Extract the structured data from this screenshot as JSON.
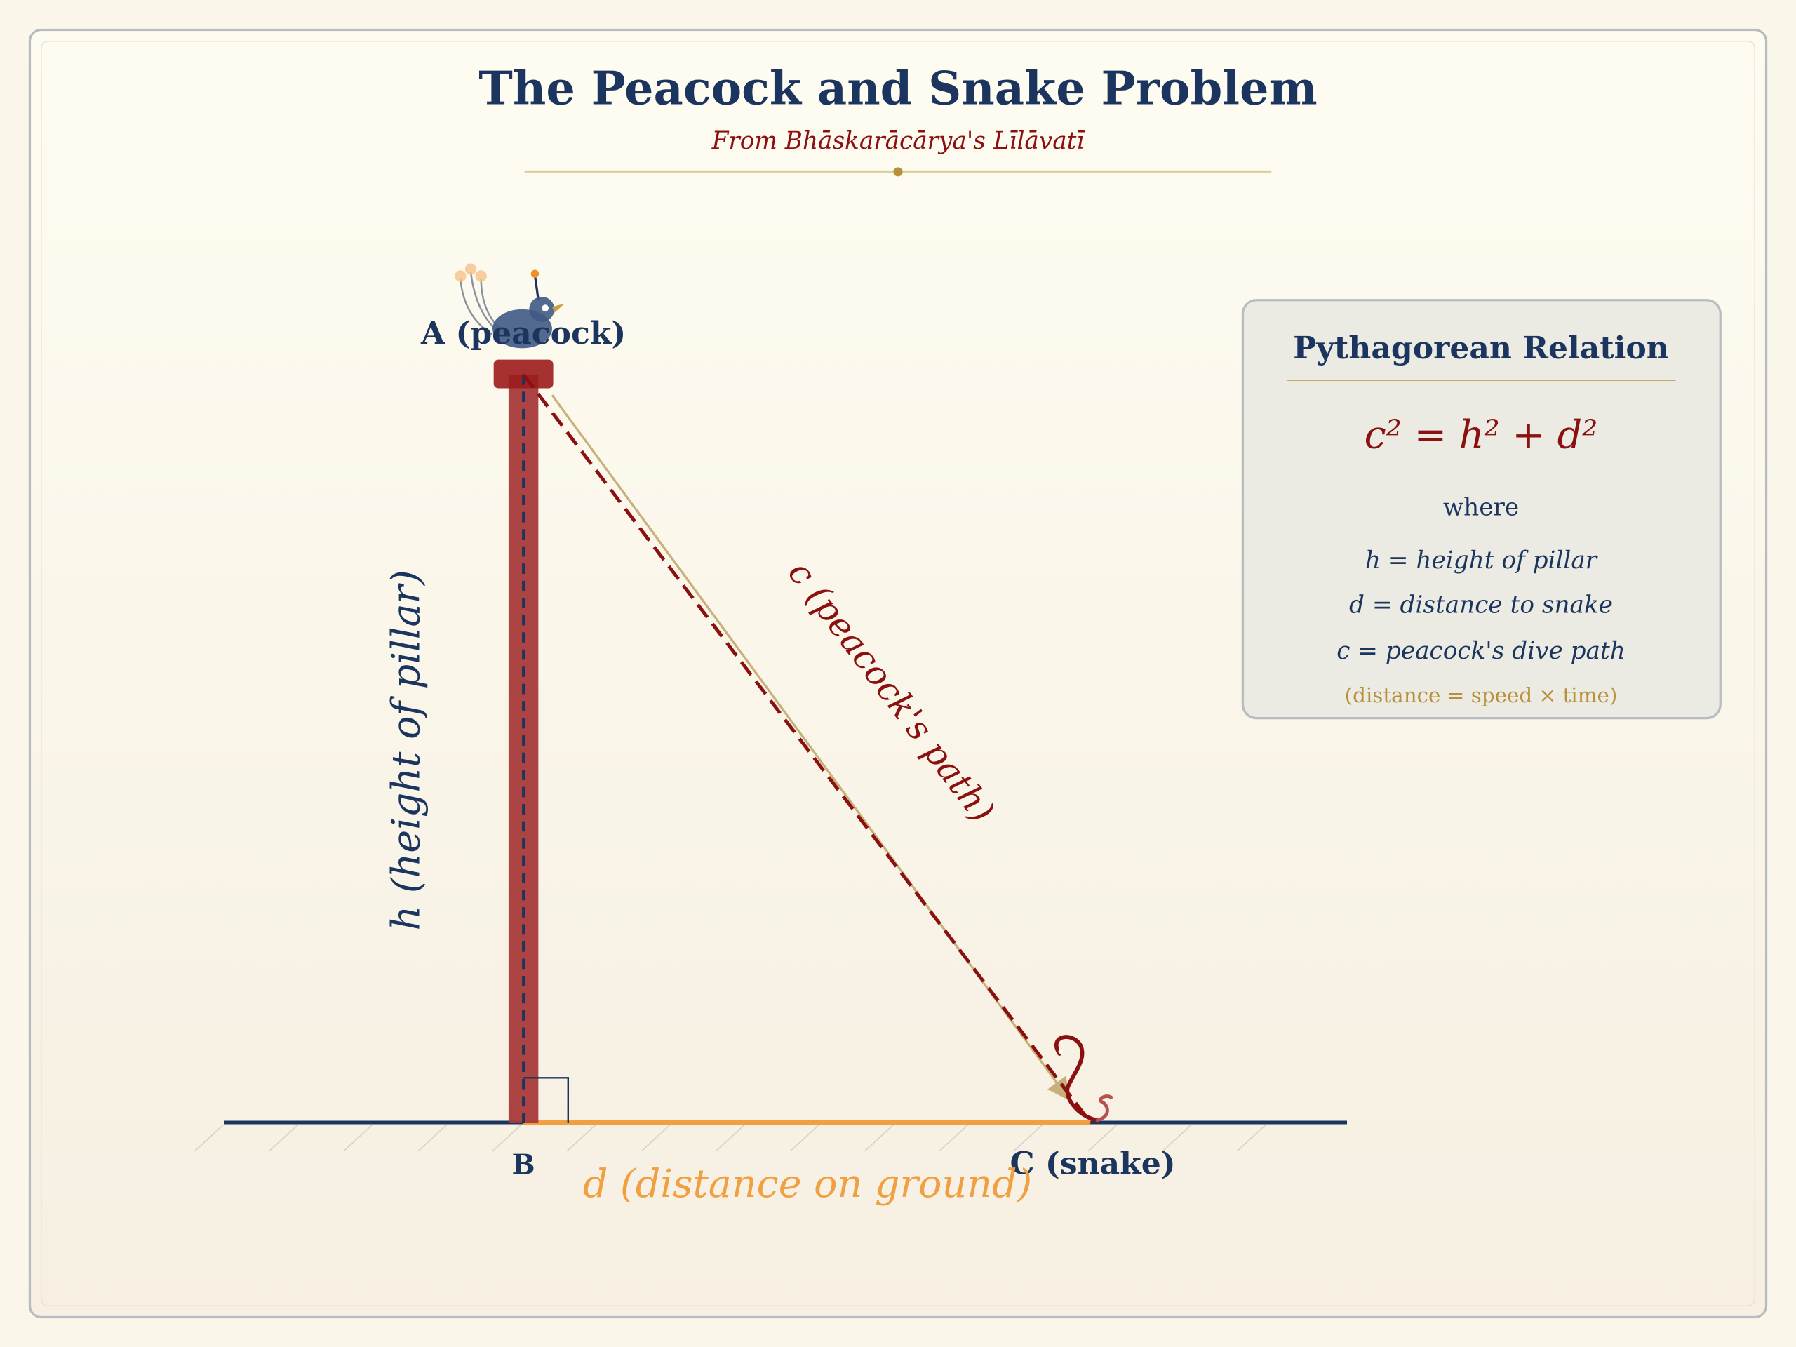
{
  "title": "The Peacock and Snake Problem",
  "subtitle": "From Bhāskarācārya's Līlāvatī",
  "labels": {
    "a": "A (peacock)",
    "b": "B",
    "c": "C (snake)",
    "h": "h (height of pillar)",
    "d": "d (distance on ground)",
    "path": "c (peacock's path)"
  },
  "panel": {
    "title": "Pythagorean Relation",
    "formula": "c² = h² + d²",
    "where": "where",
    "definitions": [
      "h = height of pillar",
      "d = distance to snake",
      "c = peacock's dive path"
    ],
    "note": "(distance = speed × time)"
  },
  "colors": {
    "navy": "#1b355e",
    "darkred": "#8b1010",
    "pillar": "#a83a3a",
    "orange": "#f0a040",
    "tan": "#b8903a"
  }
}
